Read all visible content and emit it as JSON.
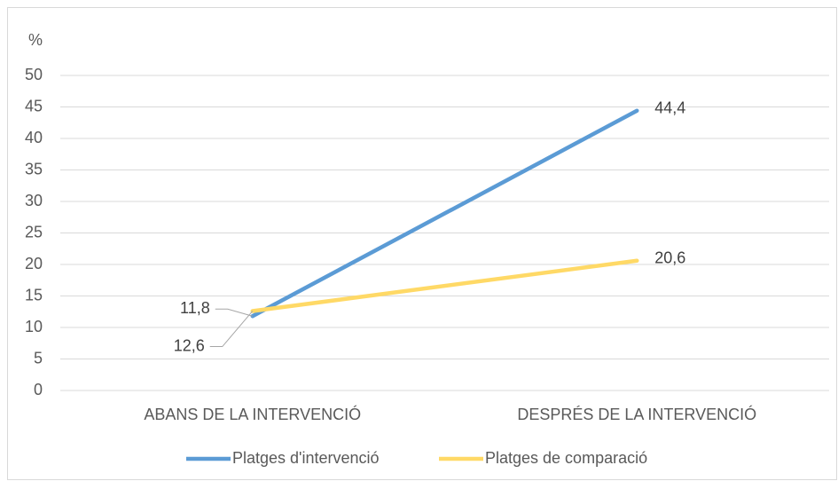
{
  "chart_data": {
    "type": "line",
    "y_label": "%",
    "categories": [
      "ABANS DE LA INTERVENCIÓ",
      "DESPRÉS DE LA INTERVENCIÓ"
    ],
    "series": [
      {
        "name": "Platges d'intervenció",
        "color": "#5b9bd5",
        "values": [
          11.8,
          44.4
        ],
        "value_labels": [
          "11,8",
          "44,4"
        ]
      },
      {
        "name": "Platges de comparació",
        "color": "#ffd966",
        "values": [
          12.6,
          20.6
        ],
        "value_labels": [
          "12,6",
          "20,6"
        ]
      }
    ],
    "ylim": [
      0,
      50
    ],
    "yticks": [
      0,
      5,
      10,
      15,
      20,
      25,
      30,
      35,
      40,
      45,
      50
    ],
    "grid": true,
    "legend": "bottom"
  }
}
